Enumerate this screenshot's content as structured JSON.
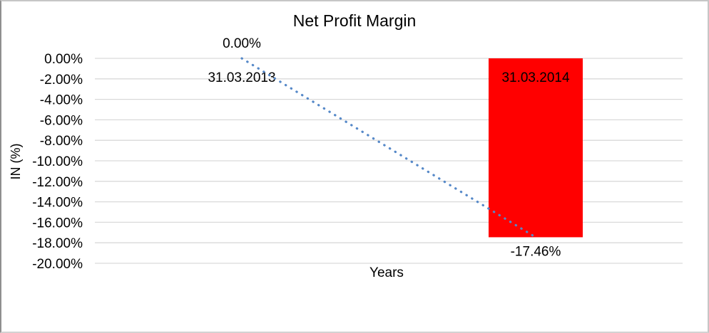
{
  "chart_data": {
    "type": "bar",
    "title": "Net Profit Margin",
    "xlabel": "Years",
    "ylabel": "IN (%)",
    "categories": [
      "31.03.2013",
      "31.03.2014"
    ],
    "series": [
      {
        "name": "IN (%)",
        "values": [
          0.0,
          -17.46
        ]
      }
    ],
    "data_labels": [
      "0.00%",
      "-17.46%"
    ],
    "yticks": [
      "0.00%",
      "-2.00%",
      "-4.00%",
      "-6.00%",
      "-8.00%",
      "-10.00%",
      "-12.00%",
      "-14.00%",
      "-16.00%",
      "-18.00%",
      "-20.00%"
    ],
    "ylim": [
      -20,
      0
    ],
    "grid": true,
    "legend_position": "none",
    "trendline": {
      "style": "dotted",
      "from_point": [
        0,
        0.0
      ],
      "to_point": [
        1,
        -17.46
      ]
    },
    "colors": {
      "bar": "#ff0000",
      "trendline": "#5588c8",
      "gridline": "#d9d9d9",
      "text": "#000000",
      "frame_border": "#c6c6c6"
    }
  }
}
